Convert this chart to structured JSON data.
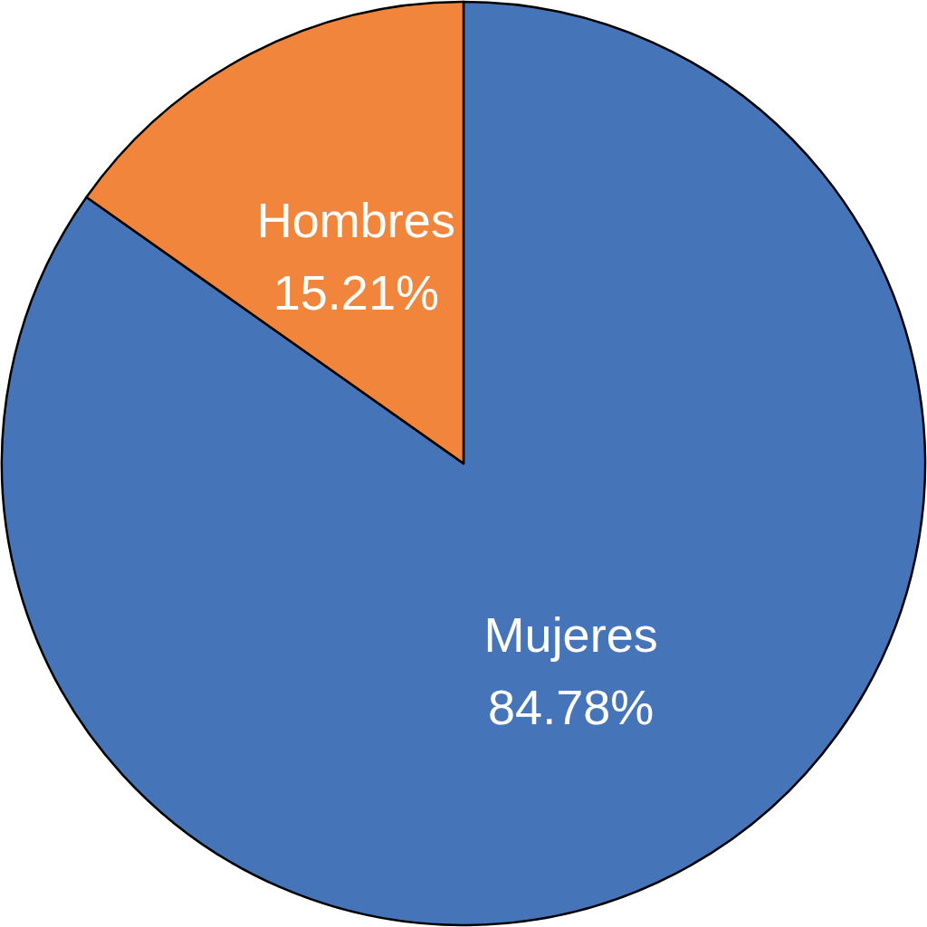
{
  "chart_data": {
    "type": "pie",
    "categories": [
      "Mujeres",
      "Hombres"
    ],
    "values": [
      84.78,
      15.21
    ],
    "colors": [
      "#4674b8",
      "#f2853c"
    ],
    "value_labels": [
      "84.78%",
      "15.21%"
    ],
    "legend": false
  }
}
